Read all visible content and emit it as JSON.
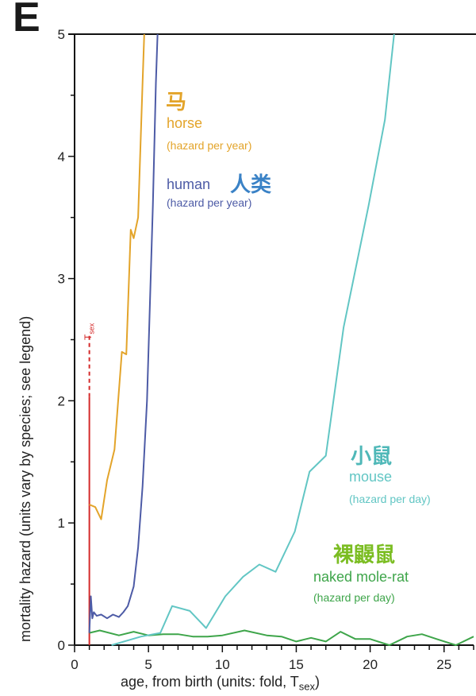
{
  "panel_label": "E",
  "chart_data": {
    "type": "line",
    "xlabel": "age, from birth (units: fold, T",
    "xlabel_sub": "sex",
    "xlabel_end": ")",
    "ylabel": "mortality hazard (units vary by species; see legend)",
    "xlim": [
      0,
      27
    ],
    "ylim": [
      0,
      5
    ],
    "xticks": [
      0,
      5,
      10,
      15,
      20,
      25
    ],
    "yticks": [
      0,
      1,
      2,
      3,
      4,
      5
    ],
    "xtick_labels": [
      "0",
      "5",
      "10",
      "15",
      "20",
      "25"
    ],
    "ytick_labels": [
      "0",
      "1",
      "2",
      "3",
      "4",
      "5"
    ],
    "tsex_marker": {
      "x": 1,
      "solid_to": 2.03,
      "dashed_to": 2.55,
      "label": "T",
      "label_sub": "sex",
      "color": "#d42a2a"
    },
    "series": [
      {
        "name": "horse",
        "name_cn": "马",
        "units": "(hazard per year)",
        "color": "#e3a42a",
        "x": [
          1,
          1.4,
          1.8,
          2.2,
          2.7,
          3.2,
          3.5,
          3.8,
          4.0,
          4.3,
          4.6,
          4.8
        ],
        "y": [
          1.15,
          1.13,
          1.03,
          1.35,
          1.6,
          2.4,
          2.38,
          3.4,
          3.33,
          3.5,
          4.6,
          5.3
        ]
      },
      {
        "name": "human",
        "name_cn": "人类",
        "units": "(hazard per year)",
        "color": "#4d5ba6",
        "x": [
          1,
          1.1,
          1.2,
          1.3,
          1.5,
          1.8,
          2.2,
          2.6,
          3.0,
          3.3,
          3.6,
          4.0,
          4.3,
          4.6,
          4.9,
          5.1,
          5.3,
          5.5,
          5.7
        ],
        "y": [
          0.1,
          0.4,
          0.22,
          0.27,
          0.24,
          0.25,
          0.22,
          0.25,
          0.23,
          0.27,
          0.32,
          0.48,
          0.8,
          1.3,
          2.0,
          2.8,
          3.6,
          4.6,
          5.3
        ]
      },
      {
        "name": "mouse",
        "name_cn": "小鼠",
        "units": "(hazard per day)",
        "color": "#62c6c4",
        "x": [
          2.5,
          4.5,
          5.8,
          6.6,
          7.8,
          8.9,
          10.2,
          11.4,
          12.5,
          13.6,
          14.9,
          15.9,
          17.0,
          18.2,
          19.9,
          21.0,
          21.8
        ],
        "y": [
          0.0,
          0.07,
          0.1,
          0.32,
          0.28,
          0.14,
          0.4,
          0.56,
          0.66,
          0.6,
          0.93,
          1.42,
          1.55,
          2.6,
          3.6,
          4.3,
          5.2
        ]
      },
      {
        "name": "naked mole-rat",
        "name_cn": "裸鼹鼠",
        "units": "(hazard per day)",
        "color": "#3ea54a",
        "name_cn_color": "#7bbd22",
        "x": [
          1,
          1.7,
          3.0,
          4.0,
          5.0,
          6.0,
          7.0,
          8.0,
          9.0,
          10.0,
          11.5,
          13.0,
          14.0,
          15.0,
          16.0,
          17.0,
          18.0,
          19.0,
          20.0,
          21.3,
          22.5,
          23.5,
          24.5,
          25.8,
          27.0
        ],
        "y": [
          0.1,
          0.12,
          0.08,
          0.11,
          0.08,
          0.09,
          0.09,
          0.07,
          0.07,
          0.08,
          0.12,
          0.08,
          0.07,
          0.03,
          0.06,
          0.03,
          0.11,
          0.05,
          0.05,
          0.0,
          0.07,
          0.09,
          0.05,
          0.0,
          0.07
        ]
      }
    ]
  }
}
